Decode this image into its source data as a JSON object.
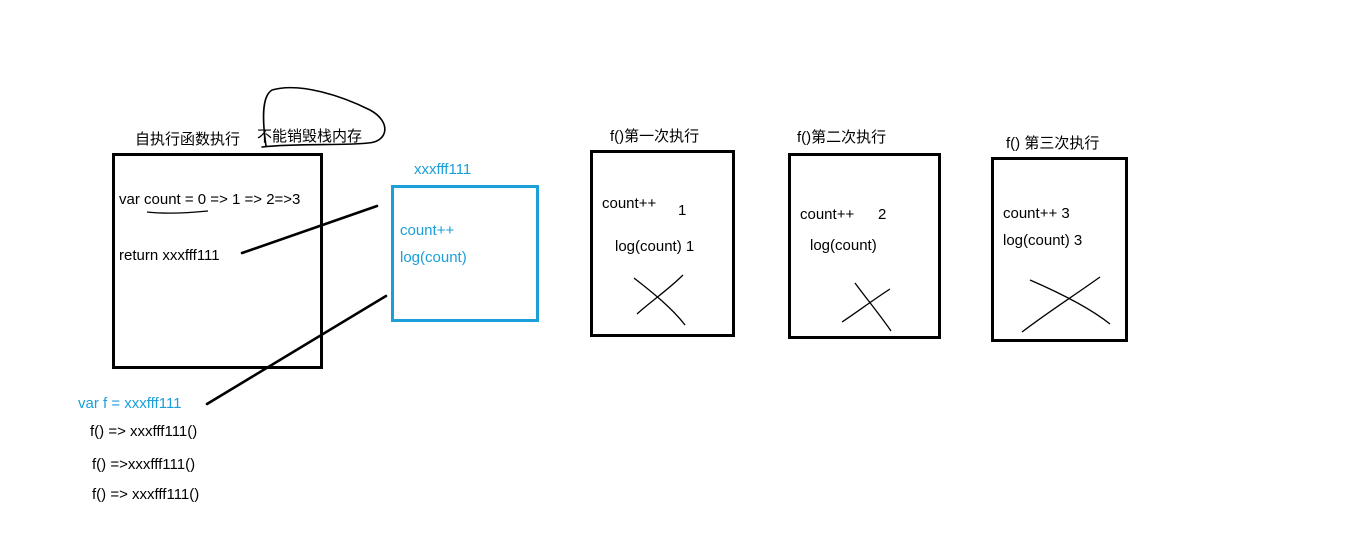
{
  "closure": {
    "title": "自执行函数执行",
    "note": "不能销毁栈内存",
    "line_var": "var count = 0 => 1 => 2=>3",
    "line_return": "return xxxfff111"
  },
  "heap": {
    "address": "xxxfff111",
    "line1": "count++",
    "line2": "log(count)"
  },
  "global": {
    "assign": "var f = xxxfff111",
    "calls": [
      "f() => xxxfff111()",
      "f() =>xxxfff111()",
      "f() => xxxfff111()"
    ]
  },
  "runs": [
    {
      "title": "f()第一次执行",
      "line1": "count++",
      "value": "1",
      "line2": "log(count) 1"
    },
    {
      "title": "f()第二次执行",
      "line1": "count++",
      "value": "2",
      "line2": "log(count)"
    },
    {
      "title": "f() 第三次执行",
      "line1": "count++ 3",
      "line2": "log(count) 3"
    }
  ],
  "colors": {
    "stroke": "#000000",
    "heap": "#1a9fd9"
  }
}
